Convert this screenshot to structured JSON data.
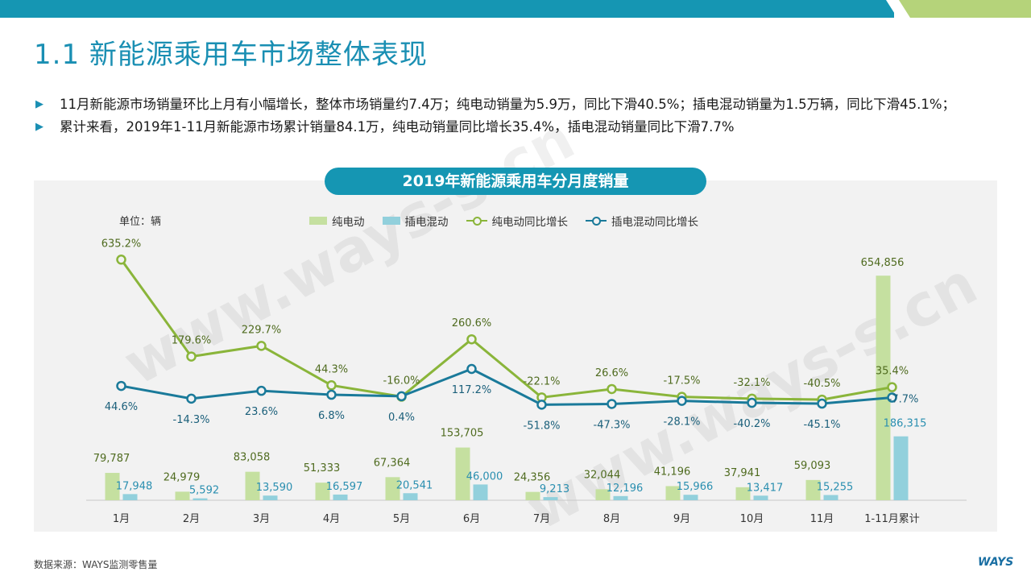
{
  "header": {
    "title": "1.1 新能源乘用车市场整体表现",
    "colors": {
      "teal": "#1596b3",
      "lime": "#a3cf62"
    }
  },
  "bullets": [
    "11月新能源市场销量环比上月有小幅增长，整体市场销量约7.4万；纯电动销量为5.9万，同比下滑40.5%；插电混动销量为1.5万辆，同比下滑45.1%；",
    "累计来看，2019年1-11月新能源市场累计销量84.1万，纯电动销量同比增长35.4%，插电混动销量同比下滑7.7%"
  ],
  "chart_data": {
    "type": "bar",
    "title": "2019年新能源乘用车分月度销量",
    "unit_label": "单位：辆",
    "categories": [
      "1月",
      "2月",
      "3月",
      "4月",
      "5月",
      "6月",
      "7月",
      "8月",
      "9月",
      "10月",
      "11月",
      "1-11月累计"
    ],
    "series": [
      {
        "name": "纯电动",
        "type": "bar",
        "color": "#c5e0a0",
        "values": [
          79787,
          24979,
          83058,
          51333,
          67364,
          153705,
          24356,
          32044,
          41196,
          37941,
          59093,
          654856
        ],
        "labels": [
          "79,787",
          "24,979",
          "83,058",
          "51,333",
          "67,364",
          "153,705",
          "24,356",
          "32,044",
          "41,196",
          "37,941",
          "59,093",
          "654,856"
        ]
      },
      {
        "name": "插电混动",
        "type": "bar",
        "color": "#92d0dc",
        "values": [
          17948,
          5592,
          13590,
          16597,
          20541,
          46000,
          9213,
          12196,
          15966,
          13417,
          15255,
          186315
        ],
        "labels": [
          "17,948",
          "5,592",
          "13,590",
          "16,597",
          "20,541",
          "46,000",
          "9,213",
          "12,196",
          "15,966",
          "13,417",
          "15,255",
          "186,315"
        ]
      },
      {
        "name": "纯电动同比增长",
        "type": "line",
        "color": "#8ab53a",
        "values": [
          635.2,
          179.6,
          229.7,
          44.3,
          -16.0,
          260.6,
          -22.1,
          26.6,
          -17.5,
          -32.1,
          -40.5,
          35.4
        ],
        "labels": [
          "635.2%",
          "179.6%",
          "229.7%",
          "44.3%",
          "-16.0%",
          "260.6%",
          "-22.1%",
          "26.6%",
          "-17.5%",
          "-32.1%",
          "-40.5%",
          "35.4%"
        ]
      },
      {
        "name": "插电混动同比增长",
        "type": "line",
        "color": "#1a7a9a",
        "values": [
          44.6,
          -14.3,
          23.6,
          6.8,
          0.4,
          117.2,
          -51.8,
          -47.3,
          -28.1,
          -40.2,
          -45.1,
          -7.7
        ],
        "labels": [
          "44.6%",
          "-14.3%",
          "23.6%",
          "6.8%",
          "0.4%",
          "117.2%",
          "-51.8%",
          "-47.3%",
          "-28.1%",
          "-40.2%",
          "-45.1%",
          "-7.7%"
        ]
      }
    ],
    "ylim": [
      0,
      700000
    ],
    "y2lim": [
      -120,
      800
    ],
    "legend_position": "top-center",
    "grid": false
  },
  "footer": {
    "source": "数据来源：WAYS监测零售量",
    "logo": "WAYS",
    "watermark": "www.ways-s.cn"
  }
}
